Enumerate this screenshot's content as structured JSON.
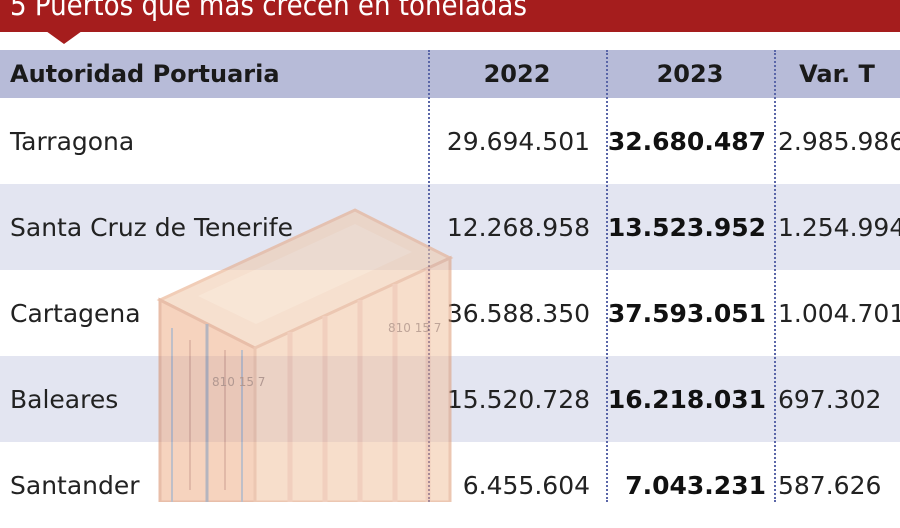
{
  "title": "5 Puertos que más crecen en toneladas",
  "colors": {
    "banner": "#a51d1d",
    "header_bg": "#b7bbd8",
    "alt_row_bg": "#e3e5f1",
    "divider": "#5a66a8"
  },
  "illustration": {
    "icon": "shipping-container-icon",
    "code_labels": [
      "810 15 7",
      "810 15 7"
    ]
  },
  "table": {
    "headers": [
      "Autoridad Portuaria",
      "2022",
      "2023",
      "Var. T"
    ],
    "rows": [
      [
        "Tarragona",
        "29.694.501",
        "32.680.487",
        "2.985.986"
      ],
      [
        "Santa Cruz de Tenerife",
        "12.268.958",
        "13.523.952",
        "1.254.994"
      ],
      [
        "Cartagena",
        "36.588.350",
        "37.593.051",
        "1.004.701"
      ],
      [
        "Baleares",
        "15.520.728",
        "16.218.031",
        "697.302"
      ],
      [
        "Santander",
        "6.455.604",
        "7.043.231",
        "587.626"
      ]
    ]
  }
}
